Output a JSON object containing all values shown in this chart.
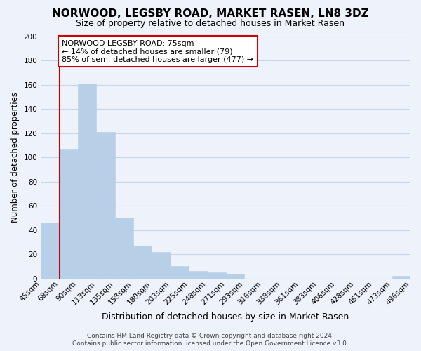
{
  "title": "NORWOOD, LEGSBY ROAD, MARKET RASEN, LN8 3DZ",
  "subtitle": "Size of property relative to detached houses in Market Rasen",
  "xlabel": "Distribution of detached houses by size in Market Rasen",
  "ylabel": "Number of detached properties",
  "bar_values": [
    46,
    107,
    161,
    121,
    50,
    27,
    22,
    10,
    6,
    5,
    4,
    0,
    0,
    0,
    0,
    0,
    0,
    0,
    0,
    2
  ],
  "tick_labels": [
    "45sqm",
    "68sqm",
    "90sqm",
    "113sqm",
    "135sqm",
    "158sqm",
    "180sqm",
    "203sqm",
    "225sqm",
    "248sqm",
    "271sqm",
    "293sqm",
    "316sqm",
    "338sqm",
    "361sqm",
    "383sqm",
    "406sqm",
    "428sqm",
    "451sqm",
    "473sqm",
    "496sqm"
  ],
  "bar_color": "#b8cfe8",
  "bar_edge_color": "#b8cfe8",
  "vline_color": "#cc0000",
  "vline_x": 1.0,
  "annotation_title": "NORWOOD LEGSBY ROAD: 75sqm",
  "annotation_line1": "← 14% of detached houses are smaller (79)",
  "annotation_line2": "85% of semi-detached houses are larger (477) →",
  "annotation_box_facecolor": "#ffffff",
  "annotation_box_edgecolor": "#cc0000",
  "ylim": [
    0,
    200
  ],
  "yticks": [
    0,
    20,
    40,
    60,
    80,
    100,
    120,
    140,
    160,
    180,
    200
  ],
  "grid_color": "#c8d4e8",
  "footer_line1": "Contains HM Land Registry data © Crown copyright and database right 2024.",
  "footer_line2": "Contains public sector information licensed under the Open Government Licence v3.0.",
  "title_fontsize": 11,
  "subtitle_fontsize": 9,
  "xlabel_fontsize": 9,
  "ylabel_fontsize": 8.5,
  "tick_fontsize": 7.5,
  "annotation_fontsize": 8,
  "footer_fontsize": 6.5,
  "bg_color": "#eef2fa"
}
